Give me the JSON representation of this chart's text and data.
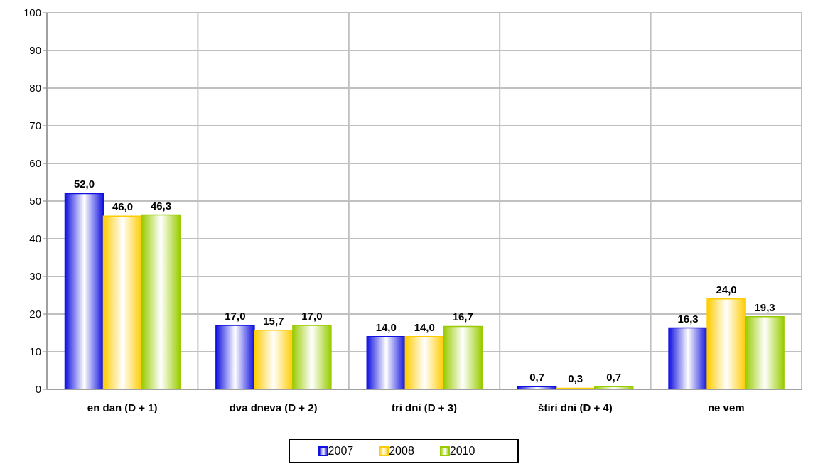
{
  "chart_data": {
    "type": "bar",
    "categories": [
      "en dan (D + 1)",
      "dva dneva (D + 2)",
      "tri dni (D + 3)",
      "štiri dni (D + 4)",
      "ne vem"
    ],
    "series": [
      {
        "name": "2007",
        "color": "#1010e0",
        "values": [
          52.0,
          17.0,
          14.0,
          0.7,
          16.3
        ],
        "value_labels": [
          "52,0",
          "17,0",
          "14,0",
          "0,7",
          "16,3"
        ]
      },
      {
        "name": "2008",
        "color": "#ffcc00",
        "values": [
          46.0,
          15.7,
          14.0,
          0.3,
          24.0
        ],
        "value_labels": [
          "46,0",
          "15,7",
          "14,0",
          "0,3",
          "24,0"
        ]
      },
      {
        "name": "2010",
        "color": "#99cc00",
        "values": [
          46.3,
          17.0,
          16.7,
          0.7,
          19.3
        ],
        "value_labels": [
          "46,3",
          "17,0",
          "16,7",
          "0,7",
          "19,3"
        ]
      }
    ],
    "ylim": [
      0,
      100
    ],
    "yticks": [
      0,
      10,
      20,
      30,
      40,
      50,
      60,
      70,
      80,
      90,
      100
    ],
    "grid": true,
    "legend": "bottom"
  }
}
